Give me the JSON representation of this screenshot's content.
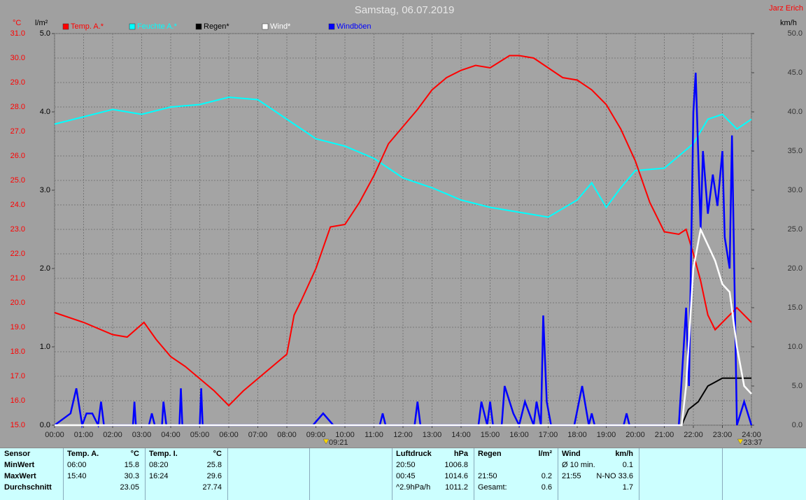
{
  "chart_data": {
    "type": "line",
    "title": "Samstag, 06.07.2019",
    "author": "Jarz Erich",
    "y_unit": "°C",
    "y3_unit": "l/m²",
    "y2_unit": "km/h",
    "xlim": [
      0,
      24
    ],
    "xticks": [
      {
        "value": 0,
        "label": "00:00"
      },
      {
        "value": 1,
        "label": "01:00"
      },
      {
        "value": 2,
        "label": "02:00"
      },
      {
        "value": 3,
        "label": "03:00"
      },
      {
        "value": 4,
        "label": "04:00"
      },
      {
        "value": 5,
        "label": "05:00"
      },
      {
        "value": 6,
        "label": "06:00"
      },
      {
        "value": 7,
        "label": "07:00"
      },
      {
        "value": 8,
        "label": "08:00"
      },
      {
        "value": 9,
        "label": "09:00"
      },
      {
        "value": 10,
        "label": "10:00"
      },
      {
        "value": 11,
        "label": "11:00"
      },
      {
        "value": 12,
        "label": "12:00"
      },
      {
        "value": 13,
        "label": "13:00"
      },
      {
        "value": 14,
        "label": "14:00"
      },
      {
        "value": 15,
        "label": "15:00"
      },
      {
        "value": 16,
        "label": "16:00"
      },
      {
        "value": 17,
        "label": "17:00"
      },
      {
        "value": 18,
        "label": "18:00"
      },
      {
        "value": 19,
        "label": "19:00"
      },
      {
        "value": 20,
        "label": "20:00"
      },
      {
        "value": 21,
        "label": "21:00"
      },
      {
        "value": 22,
        "label": "22:00"
      },
      {
        "value": 23,
        "label": "23:00"
      },
      {
        "value": 24,
        "label": "24:00"
      }
    ],
    "ylim": [
      15,
      31
    ],
    "yticks": [
      {
        "value": 15,
        "label": "15.0"
      },
      {
        "value": 16,
        "label": "16.0"
      },
      {
        "value": 17,
        "label": "17.0"
      },
      {
        "value": 18,
        "label": "18.0"
      },
      {
        "value": 19,
        "label": "19.0"
      },
      {
        "value": 20,
        "label": "20.0"
      },
      {
        "value": 21,
        "label": "21.0"
      },
      {
        "value": 22,
        "label": "22.0"
      },
      {
        "value": 23,
        "label": "23.0"
      },
      {
        "value": 24,
        "label": "24.0"
      },
      {
        "value": 25,
        "label": "25.0"
      },
      {
        "value": 26,
        "label": "26.0"
      },
      {
        "value": 27,
        "label": "27.0"
      },
      {
        "value": 28,
        "label": "28.0"
      },
      {
        "value": 29,
        "label": "29.0"
      },
      {
        "value": 30,
        "label": "30.0"
      },
      {
        "value": 31,
        "label": "31.0"
      }
    ],
    "y3lim": [
      0,
      5
    ],
    "y3ticks": [
      {
        "value": 0,
        "label": "0.0"
      },
      {
        "value": 1,
        "label": "1.0"
      },
      {
        "value": 2,
        "label": "2.0"
      },
      {
        "value": 3,
        "label": "3.0"
      },
      {
        "value": 4,
        "label": "4.0"
      },
      {
        "value": 5,
        "label": "5.0"
      }
    ],
    "y2lim": [
      0,
      50
    ],
    "y2ticks": [
      {
        "value": 0,
        "label": "0.0"
      },
      {
        "value": 5,
        "label": "5.0"
      },
      {
        "value": 10,
        "label": "10.0"
      },
      {
        "value": 15,
        "label": "15.0"
      },
      {
        "value": 20,
        "label": "20.0"
      },
      {
        "value": 25,
        "label": "25.0"
      },
      {
        "value": 30,
        "label": "30.0"
      },
      {
        "value": 35,
        "label": "35.0"
      },
      {
        "value": 40,
        "label": "40.0"
      },
      {
        "value": 45,
        "label": "45.0"
      },
      {
        "value": 50,
        "label": "50.0"
      }
    ],
    "grid": true,
    "series": [
      {
        "name": "Temp. A.*",
        "color": "#ff0000",
        "axis": "y",
        "x": [
          0,
          1,
          2,
          2.5,
          3.08,
          3.5,
          4,
          4.5,
          5,
          5.5,
          6,
          6.5,
          7,
          7.5,
          8,
          8.25,
          8.5,
          9,
          9.5,
          10,
          10.5,
          11,
          11.5,
          12,
          12.5,
          13,
          13.5,
          14,
          14.5,
          15,
          15.67,
          16,
          16.5,
          17,
          17.5,
          18,
          18.5,
          19,
          19.5,
          20,
          20.5,
          21,
          21.5,
          21.75,
          22,
          22.25,
          22.5,
          22.75,
          23,
          23.5,
          24
        ],
        "values": [
          19.6,
          19.2,
          18.7,
          18.6,
          19.2,
          18.5,
          17.8,
          17.4,
          16.9,
          16.4,
          15.8,
          16.4,
          16.9,
          17.4,
          17.9,
          19.5,
          20.1,
          21.4,
          23.1,
          23.2,
          24.1,
          25.2,
          26.5,
          27.2,
          27.9,
          28.7,
          29.2,
          29.5,
          29.7,
          29.6,
          30.1,
          30.1,
          30.0,
          29.6,
          29.2,
          29.1,
          28.7,
          28.1,
          27.1,
          25.8,
          24.1,
          22.9,
          22.8,
          23.0,
          22.0,
          20.9,
          19.5,
          18.9,
          19.2,
          19.8,
          19.2
        ]
      },
      {
        "name": "Feuchte A.*",
        "color": "#00ffff",
        "axis": "y",
        "x": [
          0,
          1,
          2,
          3,
          4,
          5,
          6,
          7,
          8,
          9,
          10,
          11,
          11.5,
          12,
          13,
          14,
          15,
          16,
          17,
          18,
          18.5,
          19,
          19.5,
          20,
          21,
          22,
          22.5,
          23,
          23.5,
          24
        ],
        "values": [
          27.3,
          27.6,
          27.9,
          27.7,
          28.0,
          28.1,
          28.4,
          28.3,
          27.5,
          26.7,
          26.4,
          25.9,
          25.5,
          25.1,
          24.7,
          24.2,
          23.9,
          23.7,
          23.5,
          24.2,
          24.9,
          23.9,
          24.7,
          25.4,
          25.5,
          26.5,
          27.5,
          27.7,
          27.1,
          27.5
        ]
      },
      {
        "name": "Regen*",
        "color": "#000000",
        "axis": "y3",
        "x": [
          0,
          21.6,
          21.83,
          22.17,
          22.5,
          23,
          24
        ],
        "values": [
          0,
          0,
          0.2,
          0.3,
          0.5,
          0.6,
          0.6
        ]
      },
      {
        "name": "Wind*",
        "color": "#ffffff",
        "axis": "y2",
        "x": [
          0,
          21.6,
          21.75,
          22,
          22.25,
          22.5,
          22.75,
          23,
          23.25,
          23.5,
          23.75,
          24
        ],
        "values": [
          0,
          0,
          5,
          20,
          25,
          23,
          21,
          18,
          17,
          10,
          5,
          4
        ]
      },
      {
        "name": "Windböen",
        "color": "#0000ff",
        "axis": "y2",
        "x": [
          0,
          0.55,
          0.75,
          0.95,
          1.1,
          1.3,
          1.5,
          1.6,
          1.7,
          2.7,
          2.75,
          2.8,
          3.25,
          3.35,
          3.45,
          3.7,
          3.75,
          3.85,
          4.3,
          4.35,
          4.4,
          5,
          5.05,
          5.1,
          8.9,
          9.25,
          9.6,
          11.2,
          11.3,
          11.4,
          12.4,
          12.5,
          12.6,
          14.6,
          14.7,
          14.9,
          15,
          15.1,
          15.4,
          15.5,
          15.8,
          16,
          16.2,
          16.5,
          16.6,
          16.75,
          16.83,
          16.95,
          17.1,
          17.9,
          18.17,
          18.4,
          18.5,
          18.6,
          19.6,
          19.7,
          19.8,
          21.5,
          21.75,
          21.85,
          22,
          22.08,
          22.25,
          22.33,
          22.5,
          22.67,
          22.83,
          23,
          23.08,
          23.25,
          23.33,
          23.5,
          23.75,
          24
        ],
        "values": [
          0,
          1.5,
          4.7,
          0,
          1.5,
          1.5,
          0,
          3,
          0,
          0,
          3,
          0,
          0,
          1.5,
          0,
          0,
          3,
          0,
          0,
          4.7,
          0,
          0,
          4.7,
          0,
          0,
          1.5,
          0,
          0,
          1.5,
          0,
          0,
          3,
          0,
          0,
          3,
          0,
          3,
          0,
          0,
          5,
          1.5,
          0,
          3,
          0,
          3,
          0,
          14,
          3,
          0,
          0,
          5,
          0,
          1.5,
          0,
          0,
          1.5,
          0,
          0,
          15,
          5,
          40,
          45,
          25,
          35,
          27,
          32,
          28,
          35,
          24,
          20,
          37,
          0,
          3,
          0
        ]
      }
    ],
    "annotations": [
      {
        "x": 9.35,
        "label": "09:21"
      },
      {
        "x": 23.62,
        "label": "23:37"
      }
    ]
  },
  "table": {
    "groups": [
      {
        "header": [
          "Sensor"
        ],
        "rows": [
          [
            "MinWert"
          ],
          [
            "MaxWert"
          ],
          [
            "Durchschnitt"
          ]
        ]
      },
      {
        "header": [
          "Temp. A.",
          "°C"
        ],
        "rows": [
          [
            "06:00",
            "15.8"
          ],
          [
            "15:40",
            "30.3"
          ],
          [
            null,
            "23.05"
          ]
        ]
      },
      {
        "header": [
          "Temp. I.",
          "°C"
        ],
        "rows": [
          [
            "08:20",
            "25.8"
          ],
          [
            "16:24",
            "29.6"
          ],
          [
            null,
            "27.74"
          ]
        ]
      },
      {
        "header": [
          null,
          null
        ],
        "rows": [
          [
            null,
            null
          ],
          [
            null,
            null
          ],
          [
            null,
            null
          ]
        ]
      },
      {
        "header": [
          null,
          null
        ],
        "rows": [
          [
            null,
            null
          ],
          [
            null,
            null
          ],
          [
            null,
            null
          ]
        ]
      },
      {
        "header": [
          "Luftdruck",
          "hPa"
        ],
        "rows": [
          [
            "20:50",
            "1006.8"
          ],
          [
            "00:45",
            "1014.6"
          ],
          [
            "^2.9hPa/h",
            "1011.2"
          ]
        ]
      },
      {
        "header": [
          "Regen",
          "l/m²"
        ],
        "rows": [
          [
            null,
            null
          ],
          [
            "21:50",
            "0.2"
          ],
          [
            "Gesamt:",
            "0.6"
          ]
        ]
      },
      {
        "header": [
          "Wind",
          "km/h"
        ],
        "rows": [
          [
            "Ø 10 min.",
            "0.1"
          ],
          [
            "21:55",
            "N-NO 33.6"
          ],
          [
            null,
            "1.7"
          ]
        ]
      }
    ]
  }
}
